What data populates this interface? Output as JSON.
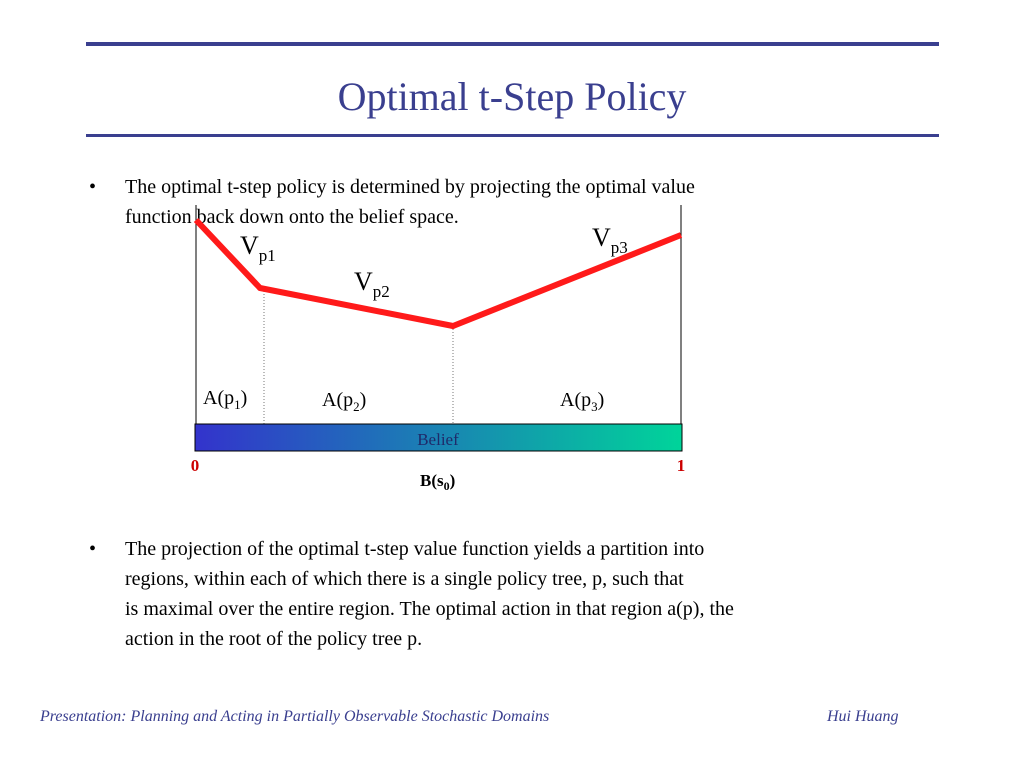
{
  "title": "Optimal t-Step Policy",
  "bullets": [
    {
      "marker": "•",
      "lines": [
        "The optimal t-step policy is determined by projecting the optimal value",
        "function back down onto the belief space."
      ]
    },
    {
      "marker": "•",
      "lines": [
        "The projection of the optimal t-step value function yields a partition into",
        "regions, within each of which there is a single policy tree, p, such that",
        "is maximal over the entire region. The optimal action in that region a(p), the",
        "action in the root of the policy tree p."
      ]
    }
  ],
  "diagram": {
    "value_labels": [
      {
        "base": "V",
        "sub": "p1"
      },
      {
        "base": "V",
        "sub": "p2"
      },
      {
        "base": "V",
        "sub": "p3"
      }
    ],
    "region_labels": [
      {
        "base": "A(p",
        "sub": "1",
        "close": ")"
      },
      {
        "base": "A(p",
        "sub": "2",
        "close": ")"
      },
      {
        "base": "A(p",
        "sub": "3",
        "close": ")"
      }
    ],
    "bar_label": "Belief",
    "axis_min_label": "0",
    "axis_max_label": "1",
    "axis_point_label": {
      "base": "B(s",
      "sub": "0",
      "close": ")"
    },
    "colors": {
      "value_line": "#ff1a1a",
      "bar_start": "#3333cc",
      "bar_end": "#00d49a",
      "axis_numbers": "#cc0000",
      "accent": "#3a3f8f"
    }
  },
  "footer": {
    "left": "Presentation: Planning and Acting in Partially Observable Stochastic Domains",
    "right": "Hui Huang"
  }
}
